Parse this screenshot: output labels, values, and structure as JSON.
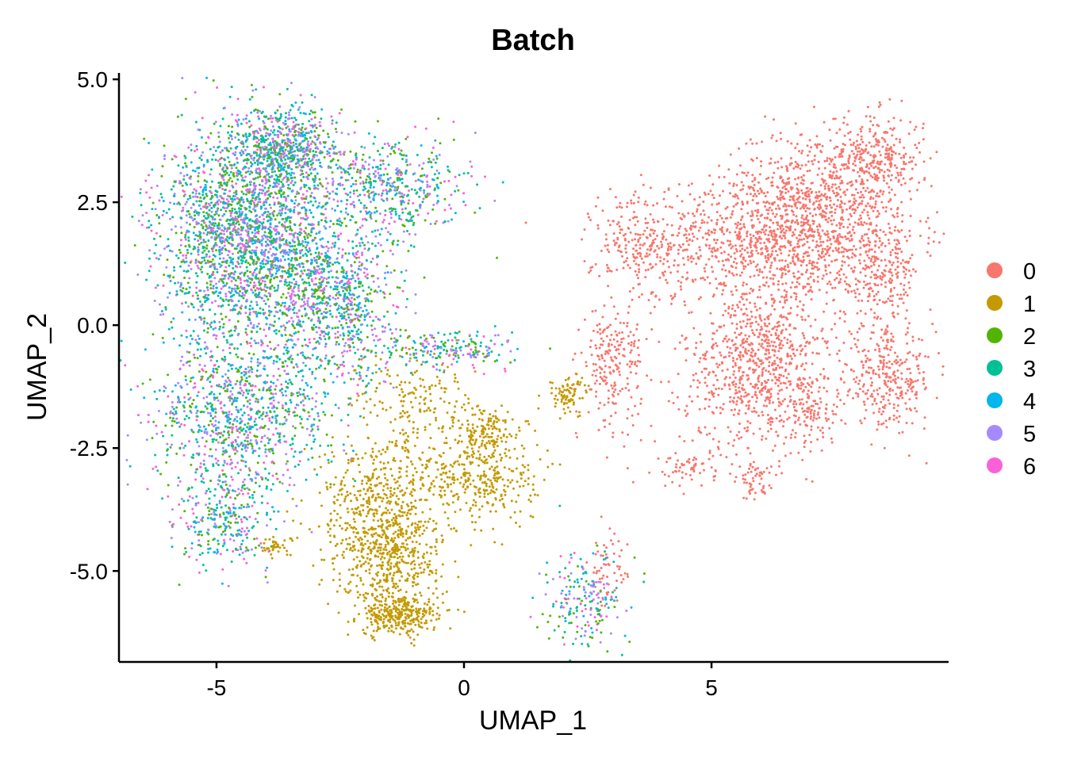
{
  "chart_data": {
    "type": "scatter",
    "title": "Batch",
    "xlabel": "UMAP_1",
    "ylabel": "UMAP_2",
    "xlim": [
      -6.97,
      9.79
    ],
    "ylim": [
      -6.85,
      5.13
    ],
    "x_ticks": [
      -5,
      0,
      5
    ],
    "x_tick_labels": [
      "-5",
      "0",
      "5"
    ],
    "y_ticks": [
      5,
      2.5,
      0,
      -2.5,
      -5
    ],
    "y_tick_labels": [
      "5.0",
      "2.5",
      "0.0",
      "-2.5",
      "-5.0"
    ],
    "grid": false,
    "legend_position": "right",
    "note": "Points approximated as gaussian clusters per batch: center [x,y], sd [sx,sy], count n",
    "series": [
      {
        "name": "0",
        "color": "#F8766D",
        "clusters": [
          {
            "center": [
              6.5,
              1.8
            ],
            "sd": [
              1.3,
              0.6
            ],
            "n": 1200
          },
          {
            "center": [
              8.3,
              3.4
            ],
            "sd": [
              0.5,
              0.45
            ],
            "n": 300
          },
          {
            "center": [
              7.0,
              3.0
            ],
            "sd": [
              0.8,
              0.5
            ],
            "n": 300
          },
          {
            "center": [
              6.0,
              -0.8
            ],
            "sd": [
              0.8,
              0.9
            ],
            "n": 900
          },
          {
            "center": [
              8.6,
              -1.1
            ],
            "sd": [
              0.45,
              0.5
            ],
            "n": 300
          },
          {
            "center": [
              8.4,
              1.0
            ],
            "sd": [
              0.4,
              0.5
            ],
            "n": 200
          },
          {
            "center": [
              3.0,
              -0.8
            ],
            "sd": [
              0.3,
              0.6
            ],
            "n": 220
          },
          {
            "center": [
              3.6,
              1.6
            ],
            "sd": [
              0.5,
              0.6
            ],
            "n": 220
          },
          {
            "center": [
              4.5,
              -2.9
            ],
            "sd": [
              0.3,
              0.2
            ],
            "n": 60
          },
          {
            "center": [
              5.9,
              -3.2
            ],
            "sd": [
              0.15,
              0.2
            ],
            "n": 50
          },
          {
            "center": [
              7.0,
              -1.8
            ],
            "sd": [
              0.3,
              0.25
            ],
            "n": 80
          },
          {
            "center": [
              2.9,
              -5.0
            ],
            "sd": [
              0.2,
              0.4
            ],
            "n": 60
          }
        ]
      },
      {
        "name": "1",
        "color": "#C49A00",
        "clusters": [
          {
            "center": [
              -1.3,
              -5.9
            ],
            "sd": [
              0.4,
              0.2
            ],
            "n": 300
          },
          {
            "center": [
              -1.7,
              -3.8
            ],
            "sd": [
              0.6,
              0.8
            ],
            "n": 600
          },
          {
            "center": [
              0.3,
              -3.0
            ],
            "sd": [
              0.6,
              0.6
            ],
            "n": 400
          },
          {
            "center": [
              0.4,
              -2.1
            ],
            "sd": [
              0.3,
              0.2
            ],
            "n": 100
          },
          {
            "center": [
              -1.5,
              -4.8
            ],
            "sd": [
              0.5,
              0.5
            ],
            "n": 300
          },
          {
            "center": [
              -3.8,
              -4.5
            ],
            "sd": [
              0.2,
              0.1
            ],
            "n": 40
          },
          {
            "center": [
              2.1,
              -1.4
            ],
            "sd": [
              0.2,
              0.2
            ],
            "n": 80
          },
          {
            "center": [
              -1.0,
              -1.5
            ],
            "sd": [
              0.6,
              0.5
            ],
            "n": 150
          }
        ]
      },
      {
        "name": "2",
        "color": "#53B400",
        "weight": 1.0
      },
      {
        "name": "3",
        "color": "#00C094",
        "weight": 1.1
      },
      {
        "name": "4",
        "color": "#00B6EB",
        "weight": 0.9
      },
      {
        "name": "5",
        "color": "#A58AFF",
        "weight": 1.0
      },
      {
        "name": "6",
        "color": "#FB61D7",
        "weight": 0.9
      }
    ],
    "shared_clusters_batches_2_to_6": [
      {
        "center": [
          -4.3,
          1.8
        ],
        "sd": [
          0.9,
          1.1
        ],
        "n": 500
      },
      {
        "center": [
          -3.6,
          3.6
        ],
        "sd": [
          0.5,
          0.4
        ],
        "n": 120
      },
      {
        "center": [
          -1.5,
          2.8
        ],
        "sd": [
          0.8,
          0.5
        ],
        "n": 100
      },
      {
        "center": [
          -4.5,
          -1.8
        ],
        "sd": [
          0.9,
          0.8
        ],
        "n": 200
      },
      {
        "center": [
          -4.8,
          -4.0
        ],
        "sd": [
          0.5,
          0.5
        ],
        "n": 60
      },
      {
        "center": [
          -0.2,
          -0.5
        ],
        "sd": [
          0.6,
          0.2
        ],
        "n": 40
      },
      {
        "center": [
          2.4,
          -5.6
        ],
        "sd": [
          0.4,
          0.5
        ],
        "n": 40
      },
      {
        "center": [
          -2.5,
          0.5
        ],
        "sd": [
          0.6,
          0.8
        ],
        "n": 150
      }
    ]
  }
}
